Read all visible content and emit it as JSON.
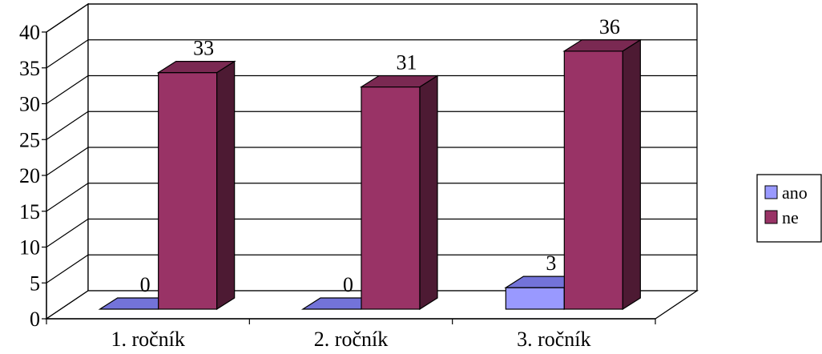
{
  "chart_data": {
    "type": "bar",
    "style": "3d-clustered-column",
    "categories": [
      "1. ročník",
      "2. ročník",
      "3. ročník"
    ],
    "series": [
      {
        "name": "ano",
        "values": [
          0,
          0,
          3
        ],
        "color": "#9999ff",
        "side_color": "#6a6acc",
        "top_color": "#7373d9"
      },
      {
        "name": "ne",
        "values": [
          33,
          31,
          36
        ],
        "color": "#993366",
        "side_color": "#4d1a33",
        "top_color": "#7a2952"
      }
    ],
    "data_labels": [
      [
        "0",
        "0",
        "3"
      ],
      [
        "33",
        "31",
        "36"
      ]
    ],
    "yticks": [
      "0",
      "5",
      "10",
      "15",
      "20",
      "25",
      "30",
      "35",
      "40"
    ],
    "ylim": [
      0,
      40
    ],
    "grid": true,
    "legend_position": "right",
    "xlabel": "",
    "ylabel": "",
    "title": ""
  }
}
